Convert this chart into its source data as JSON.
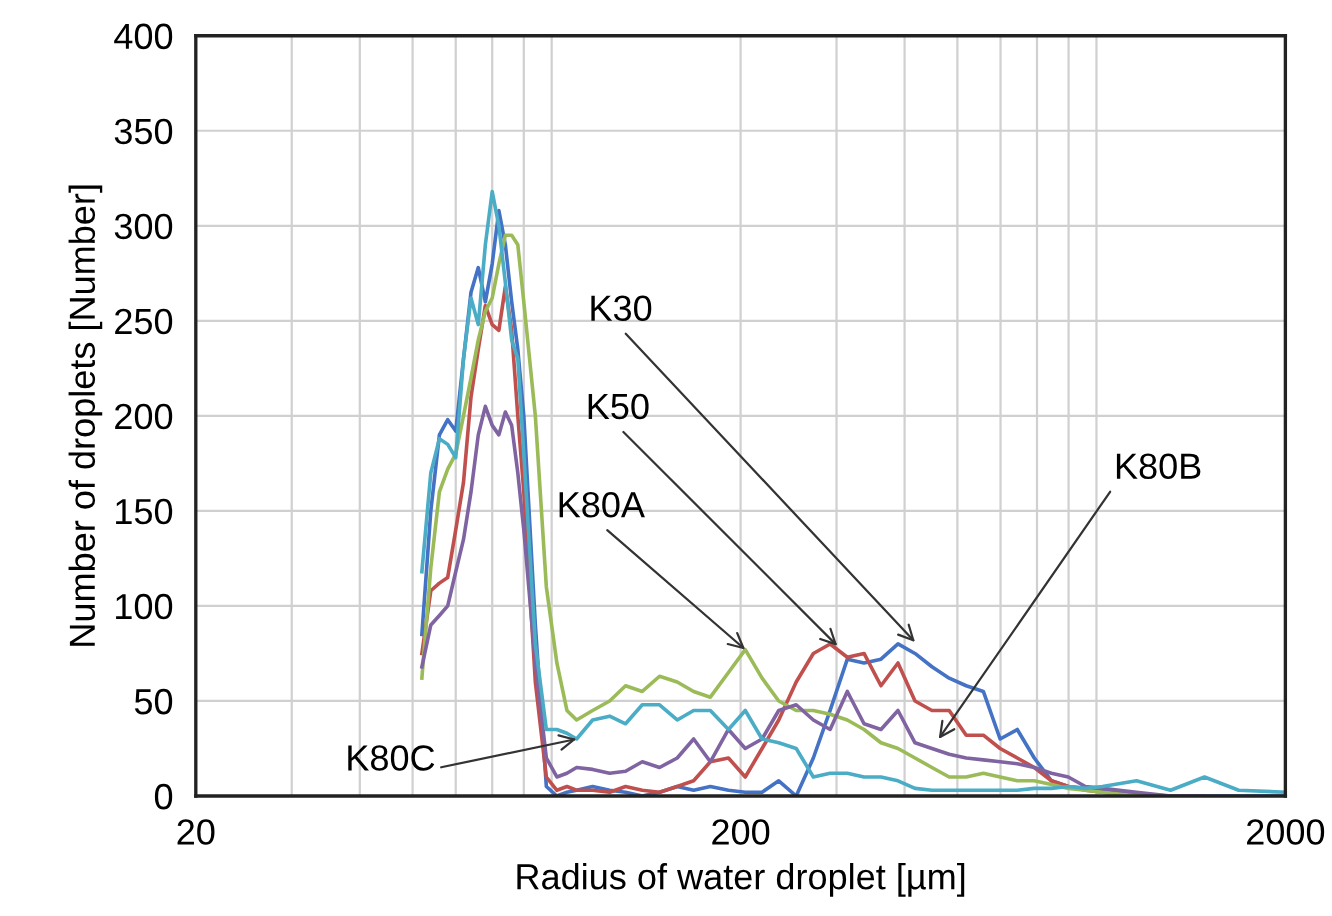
{
  "chart_data": {
    "type": "line",
    "xlabel": "Radius of water droplet [µm]",
    "ylabel": "Number of droplets [Number]",
    "log": "x",
    "xlim": [
      20,
      2000
    ],
    "xticks": [
      20,
      200,
      2000
    ],
    "ylim": [
      0,
      400
    ],
    "yticks": [
      0,
      50,
      100,
      150,
      200,
      250,
      300,
      350,
      400
    ],
    "grid": true,
    "legend": false,
    "marker": "none",
    "line_style": "solid",
    "x": [
      52,
      54,
      56,
      58,
      60,
      62,
      64,
      66,
      68,
      70,
      72,
      74,
      76,
      78,
      80,
      84,
      88,
      92,
      96,
      100,
      107,
      115,
      123,
      132,
      142,
      153,
      164,
      176,
      190,
      204,
      219,
      235,
      253,
      272,
      292,
      314,
      337,
      362,
      389,
      418,
      449,
      483,
      519,
      558,
      599,
      644,
      692,
      744,
      799,
      859,
      923,
      1066,
      1231,
      1421,
      1642,
      2000
    ],
    "series": [
      {
        "color": "#4472c4",
        "values": [
          85,
          150,
          190,
          198,
          192,
          230,
          265,
          278,
          260,
          280,
          308,
          290,
          260,
          235,
          200,
          90,
          5,
          0,
          2,
          3,
          5,
          3,
          2,
          0,
          2,
          5,
          3,
          5,
          3,
          2,
          2,
          8,
          0,
          20,
          45,
          72,
          70,
          72,
          80,
          75,
          68,
          62,
          58,
          55,
          30,
          35,
          20,
          8,
          5,
          4,
          3,
          1,
          0,
          0,
          0,
          0
        ]
      },
      {
        "color": "#c0504d",
        "values": [
          75,
          108,
          112,
          115,
          140,
          165,
          210,
          235,
          258,
          248,
          245,
          268,
          245,
          200,
          160,
          60,
          10,
          3,
          5,
          3,
          3,
          2,
          5,
          3,
          2,
          5,
          8,
          18,
          20,
          10,
          25,
          40,
          60,
          75,
          80,
          73,
          75,
          58,
          70,
          50,
          45,
          45,
          32,
          32,
          25,
          20,
          15,
          8,
          5,
          3,
          2,
          0,
          null,
          null,
          null,
          null
        ]
      },
      {
        "color": "#9bbb59",
        "values": [
          62,
          120,
          160,
          172,
          180,
          200,
          220,
          240,
          255,
          262,
          280,
          295,
          295,
          290,
          260,
          200,
          110,
          70,
          45,
          40,
          45,
          50,
          58,
          55,
          63,
          60,
          55,
          52,
          65,
          77,
          62,
          50,
          45,
          45,
          43,
          40,
          35,
          28,
          25,
          20,
          15,
          10,
          10,
          12,
          10,
          8,
          8,
          6,
          4,
          3,
          2,
          0,
          0,
          null,
          null,
          null
        ]
      },
      {
        "color": "#8064a2",
        "values": [
          68,
          90,
          95,
          100,
          118,
          135,
          160,
          190,
          205,
          195,
          190,
          202,
          195,
          170,
          140,
          70,
          20,
          10,
          12,
          15,
          14,
          12,
          13,
          18,
          15,
          20,
          30,
          18,
          35,
          25,
          30,
          45,
          48,
          40,
          35,
          55,
          38,
          35,
          45,
          28,
          25,
          22,
          20,
          19,
          18,
          17,
          15,
          12,
          10,
          5,
          4,
          2,
          0,
          0,
          null,
          null
        ]
      },
      {
        "color": "#4bacc6",
        "values": [
          118,
          170,
          188,
          185,
          178,
          230,
          262,
          248,
          290,
          318,
          300,
          270,
          240,
          230,
          180,
          80,
          35,
          35,
          33,
          30,
          40,
          42,
          38,
          48,
          48,
          40,
          45,
          45,
          35,
          45,
          30,
          28,
          25,
          10,
          12,
          12,
          10,
          10,
          8,
          4,
          3,
          3,
          3,
          3,
          3,
          3,
          4,
          4,
          5,
          4,
          5,
          8,
          3,
          10,
          3,
          2
        ]
      }
    ],
    "annotations": [
      {
        "text": "K30",
        "x": 418,
        "y": 81
      },
      {
        "text": "K50",
        "x": 301,
        "y": 79
      },
      {
        "text": "K80A",
        "x": 204,
        "y": 77
      },
      {
        "text": "K80B",
        "x": 462,
        "y": 30
      },
      {
        "text": "K80C",
        "x": 100,
        "y": 30
      }
    ]
  }
}
